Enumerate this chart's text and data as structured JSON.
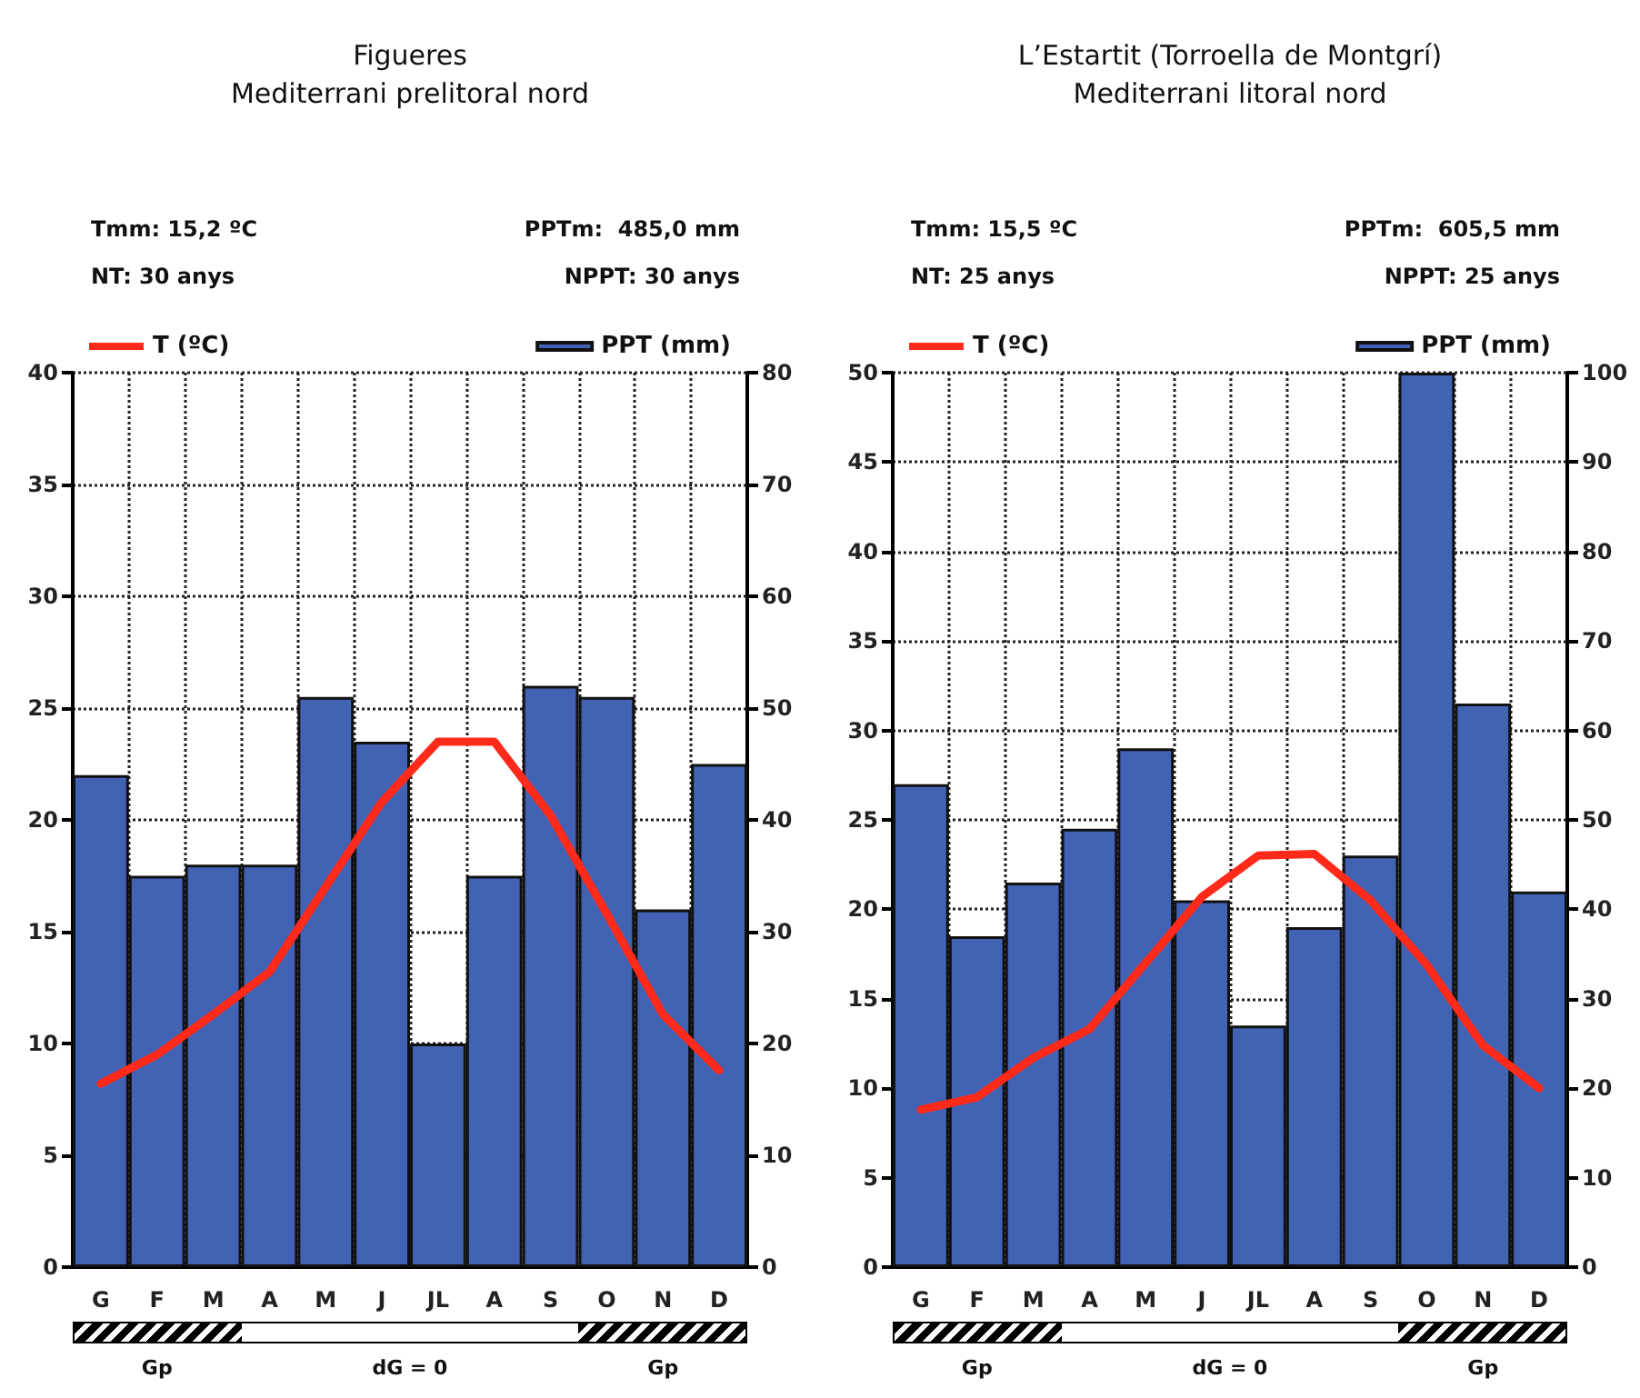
{
  "chart_data": [
    {
      "type": "bar",
      "title": "Figueres",
      "subtitle": "Mediterrani prelitoral nord",
      "annotations": [
        "Tmm: 15,2 ºC",
        "NT: 30 anys",
        "PPTm:  485,0 mm",
        "NPPT: 30 anys",
        "Gp",
        "dG = 0",
        "Gp"
      ],
      "categories": [
        "G",
        "F",
        "M",
        "A",
        "M",
        "J",
        "JL",
        "A",
        "S",
        "O",
        "N",
        "D"
      ],
      "series": [
        {
          "name": "T (ºC)",
          "type": "line",
          "axis": "y",
          "color": "#ff2a1a",
          "values": [
            8.2,
            9.5,
            11.3,
            13.2,
            17.0,
            20.8,
            23.5,
            23.5,
            20.2,
            15.8,
            11.3,
            8.8
          ]
        },
        {
          "name": "PPT (mm)",
          "type": "bar",
          "axis": "y2",
          "color": "#4262b4",
          "values": [
            44,
            35,
            36,
            36,
            51,
            47,
            20,
            35,
            52,
            51,
            32,
            45
          ]
        }
      ],
      "ylim": [
        0,
        40
      ],
      "yticks": [
        0,
        5,
        10,
        15,
        20,
        25,
        30,
        35,
        40
      ],
      "y2lim": [
        0,
        80
      ],
      "y2ticks": [
        0,
        10,
        20,
        30,
        40,
        50,
        60,
        70,
        80
      ],
      "grid": true,
      "legend": "top",
      "marker": "none",
      "line_style": "solid"
    },
    {
      "type": "bar",
      "title": "L’Estartit (Torroella de Montgrí)",
      "subtitle": "Mediterrani litoral nord",
      "annotations": [
        "Tmm: 15,5 ºC",
        "NT: 25 anys",
        "PPTm:  605,5 mm",
        "NPPT: 25 anys",
        "Gp",
        "dG = 0",
        "Gp"
      ],
      "categories": [
        "G",
        "F",
        "M",
        "A",
        "M",
        "J",
        "JL",
        "A",
        "S",
        "O",
        "N",
        "D"
      ],
      "series": [
        {
          "name": "T (ºC)",
          "type": "line",
          "axis": "y",
          "color": "#ff2a1a",
          "values": [
            8.8,
            9.5,
            11.7,
            13.3,
            17.0,
            20.7,
            23.0,
            23.1,
            20.5,
            16.9,
            12.4,
            10.0
          ]
        },
        {
          "name": "PPT (mm)",
          "type": "bar",
          "axis": "y2",
          "color": "#4262b4",
          "values": [
            54,
            37,
            43,
            49,
            58,
            41,
            27,
            38,
            46,
            100,
            63,
            42
          ]
        }
      ],
      "ylim": [
        0,
        50
      ],
      "yticks": [
        0,
        5,
        10,
        15,
        20,
        25,
        30,
        35,
        40,
        45,
        50
      ],
      "y2lim": [
        0,
        100
      ],
      "y2ticks": [
        0,
        10,
        20,
        30,
        40,
        50,
        60,
        70,
        80,
        90,
        100
      ],
      "grid": true,
      "legend": "top",
      "marker": "none",
      "line_style": "solid"
    }
  ]
}
